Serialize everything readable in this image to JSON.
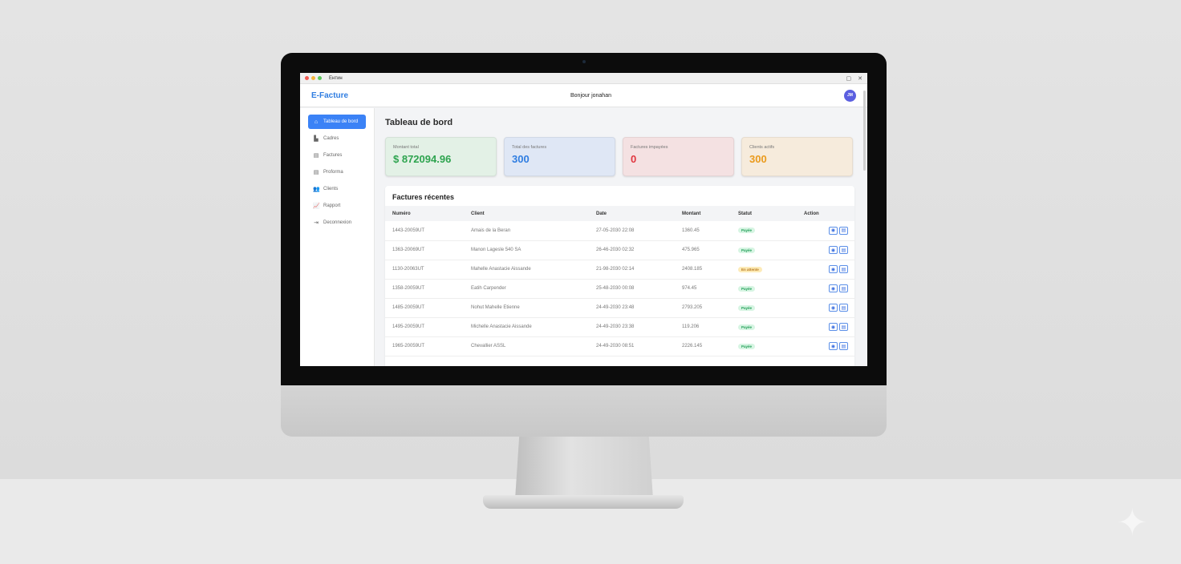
{
  "window": {
    "title": "Ентин",
    "controls": [
      "▢",
      "✕"
    ]
  },
  "header": {
    "brand": "E-Facture",
    "greeting": "Bonjour jonahan",
    "avatar": "JM"
  },
  "sidebar": {
    "items": [
      {
        "label": "Tableau de bord",
        "icon": "home-icon",
        "glyph": "⌂",
        "active": true
      },
      {
        "label": "Cadres",
        "icon": "building-icon",
        "glyph": "▙"
      },
      {
        "label": "Factures",
        "icon": "document-icon",
        "glyph": "▤"
      },
      {
        "label": "Proforma",
        "icon": "document-icon",
        "glyph": "▤"
      },
      {
        "label": "Clients",
        "icon": "users-icon",
        "glyph": "👥"
      },
      {
        "label": "Rapport",
        "icon": "chart-icon",
        "glyph": "📈"
      },
      {
        "label": "Deconnexion",
        "icon": "logout-icon",
        "glyph": "⇥"
      }
    ]
  },
  "main": {
    "title": "Tableau de bord",
    "cards": [
      {
        "label": "Montant total",
        "value": "$ 872094.96",
        "bg": "#e3f1e6",
        "color": "#2ea44f"
      },
      {
        "label": "Total des factures",
        "value": "300",
        "bg": "#dfe7f5",
        "color": "#2f7de1"
      },
      {
        "label": "Factures impayées",
        "value": "0",
        "bg": "#f4e1e2",
        "color": "#e0363f"
      },
      {
        "label": "Clients actifs",
        "value": "300",
        "bg": "#f6ebdc",
        "color": "#ea9a1c"
      }
    ],
    "recent": {
      "title": "Factures récentes",
      "columns": [
        "Numéro",
        "Client",
        "Date",
        "Montant",
        "Statut",
        "Action"
      ],
      "rows": [
        {
          "num": "1443-20059UT",
          "client": "Amais de la Beran",
          "date": "27-05-2030 22:08",
          "amount": "1360.45",
          "status": "Payée",
          "kind": "paid"
        },
        {
          "num": "1363-20069UT",
          "client": "Manon Lagesle 540 SA",
          "date": "26-46-2030 02:32",
          "amount": "475.965",
          "status": "Payée",
          "kind": "paid"
        },
        {
          "num": "1130-20063UT",
          "client": "Mahelle Anastacie Aissande",
          "date": "21-98-2030 02:14",
          "amount": "2408.185",
          "status": "En attente",
          "kind": "pending"
        },
        {
          "num": "1358-20059UT",
          "client": "Eatih Carpender",
          "date": "25-48-2030 00:08",
          "amount": "974.45",
          "status": "Payée",
          "kind": "paid"
        },
        {
          "num": "1485-20059UT",
          "client": "Nohut Mahelle Etienne",
          "date": "24-49-2030 23:48",
          "amount": "2793.205",
          "status": "Payée",
          "kind": "paid"
        },
        {
          "num": "1495-20059UT",
          "client": "Michelle Anastacie Aissande",
          "date": "24-49-2030 23:38",
          "amount": "119.206",
          "status": "Payée",
          "kind": "paid"
        },
        {
          "num": "1965-20059UT",
          "client": "Chevallier ASSL",
          "date": "24-49-2030 08:51",
          "amount": "2226.145",
          "status": "Payée",
          "kind": "paid"
        }
      ]
    }
  },
  "colors": {
    "accent": "#3b82f6",
    "paid_bg": "#d7f5e3",
    "paid_fg": "#1f9d55",
    "pending_bg": "#fdebb8",
    "pending_fg": "#b7791f"
  }
}
